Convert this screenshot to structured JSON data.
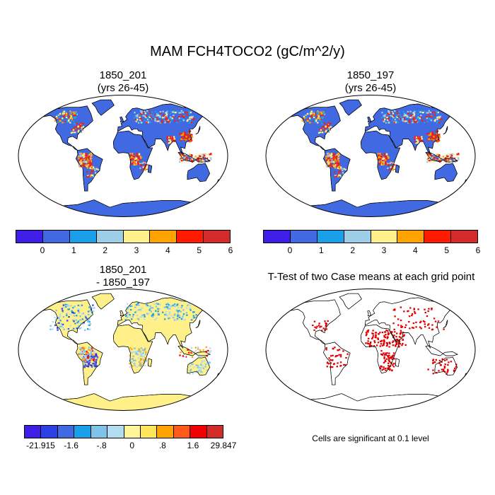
{
  "title": "MAM FCH4TOCO2 (gC/m^2/y)",
  "panels": [
    {
      "id": "case1",
      "title_line1": "1850_201",
      "title_line2": "(yrs 26-45)"
    },
    {
      "id": "case2",
      "title_line1": "1850_197",
      "title_line2": "(yrs 26-45)"
    },
    {
      "id": "diff",
      "title_line1": "1850_201",
      "title_line2": "- 1850_197"
    },
    {
      "id": "ttest",
      "title_line1": "T-Test of two Case means at each grid point",
      "title_line2": ""
    }
  ],
  "colorbar_main": {
    "colors": [
      "#3f1fe8",
      "#4169e1",
      "#1aa0ea",
      "#9ecde8",
      "#fff08a",
      "#ffa300",
      "#ff1a00",
      "#d32a2a"
    ],
    "labels": [
      "0",
      "1",
      "2",
      "3",
      "4",
      "5",
      "6"
    ]
  },
  "colorbar_diff": {
    "colors": [
      "#3f1fe8",
      "#2d40e6",
      "#4169e1",
      "#1aa0ea",
      "#7dc3ea",
      "#b2ddf0",
      "#fff69a",
      "#ffe55a",
      "#ffa300",
      "#ff5a1a",
      "#f00000",
      "#d32a2a"
    ],
    "labels": [
      "-21.915",
      "-1.6",
      "-.8",
      "0",
      ".8",
      "1.6",
      "29.847"
    ]
  },
  "note": "Cells are significant at 0.1 level",
  "colors": {
    "land_main": "#4169e1",
    "land_diff": "#fff08a",
    "significant": "#e00000",
    "outline": "#000000"
  }
}
